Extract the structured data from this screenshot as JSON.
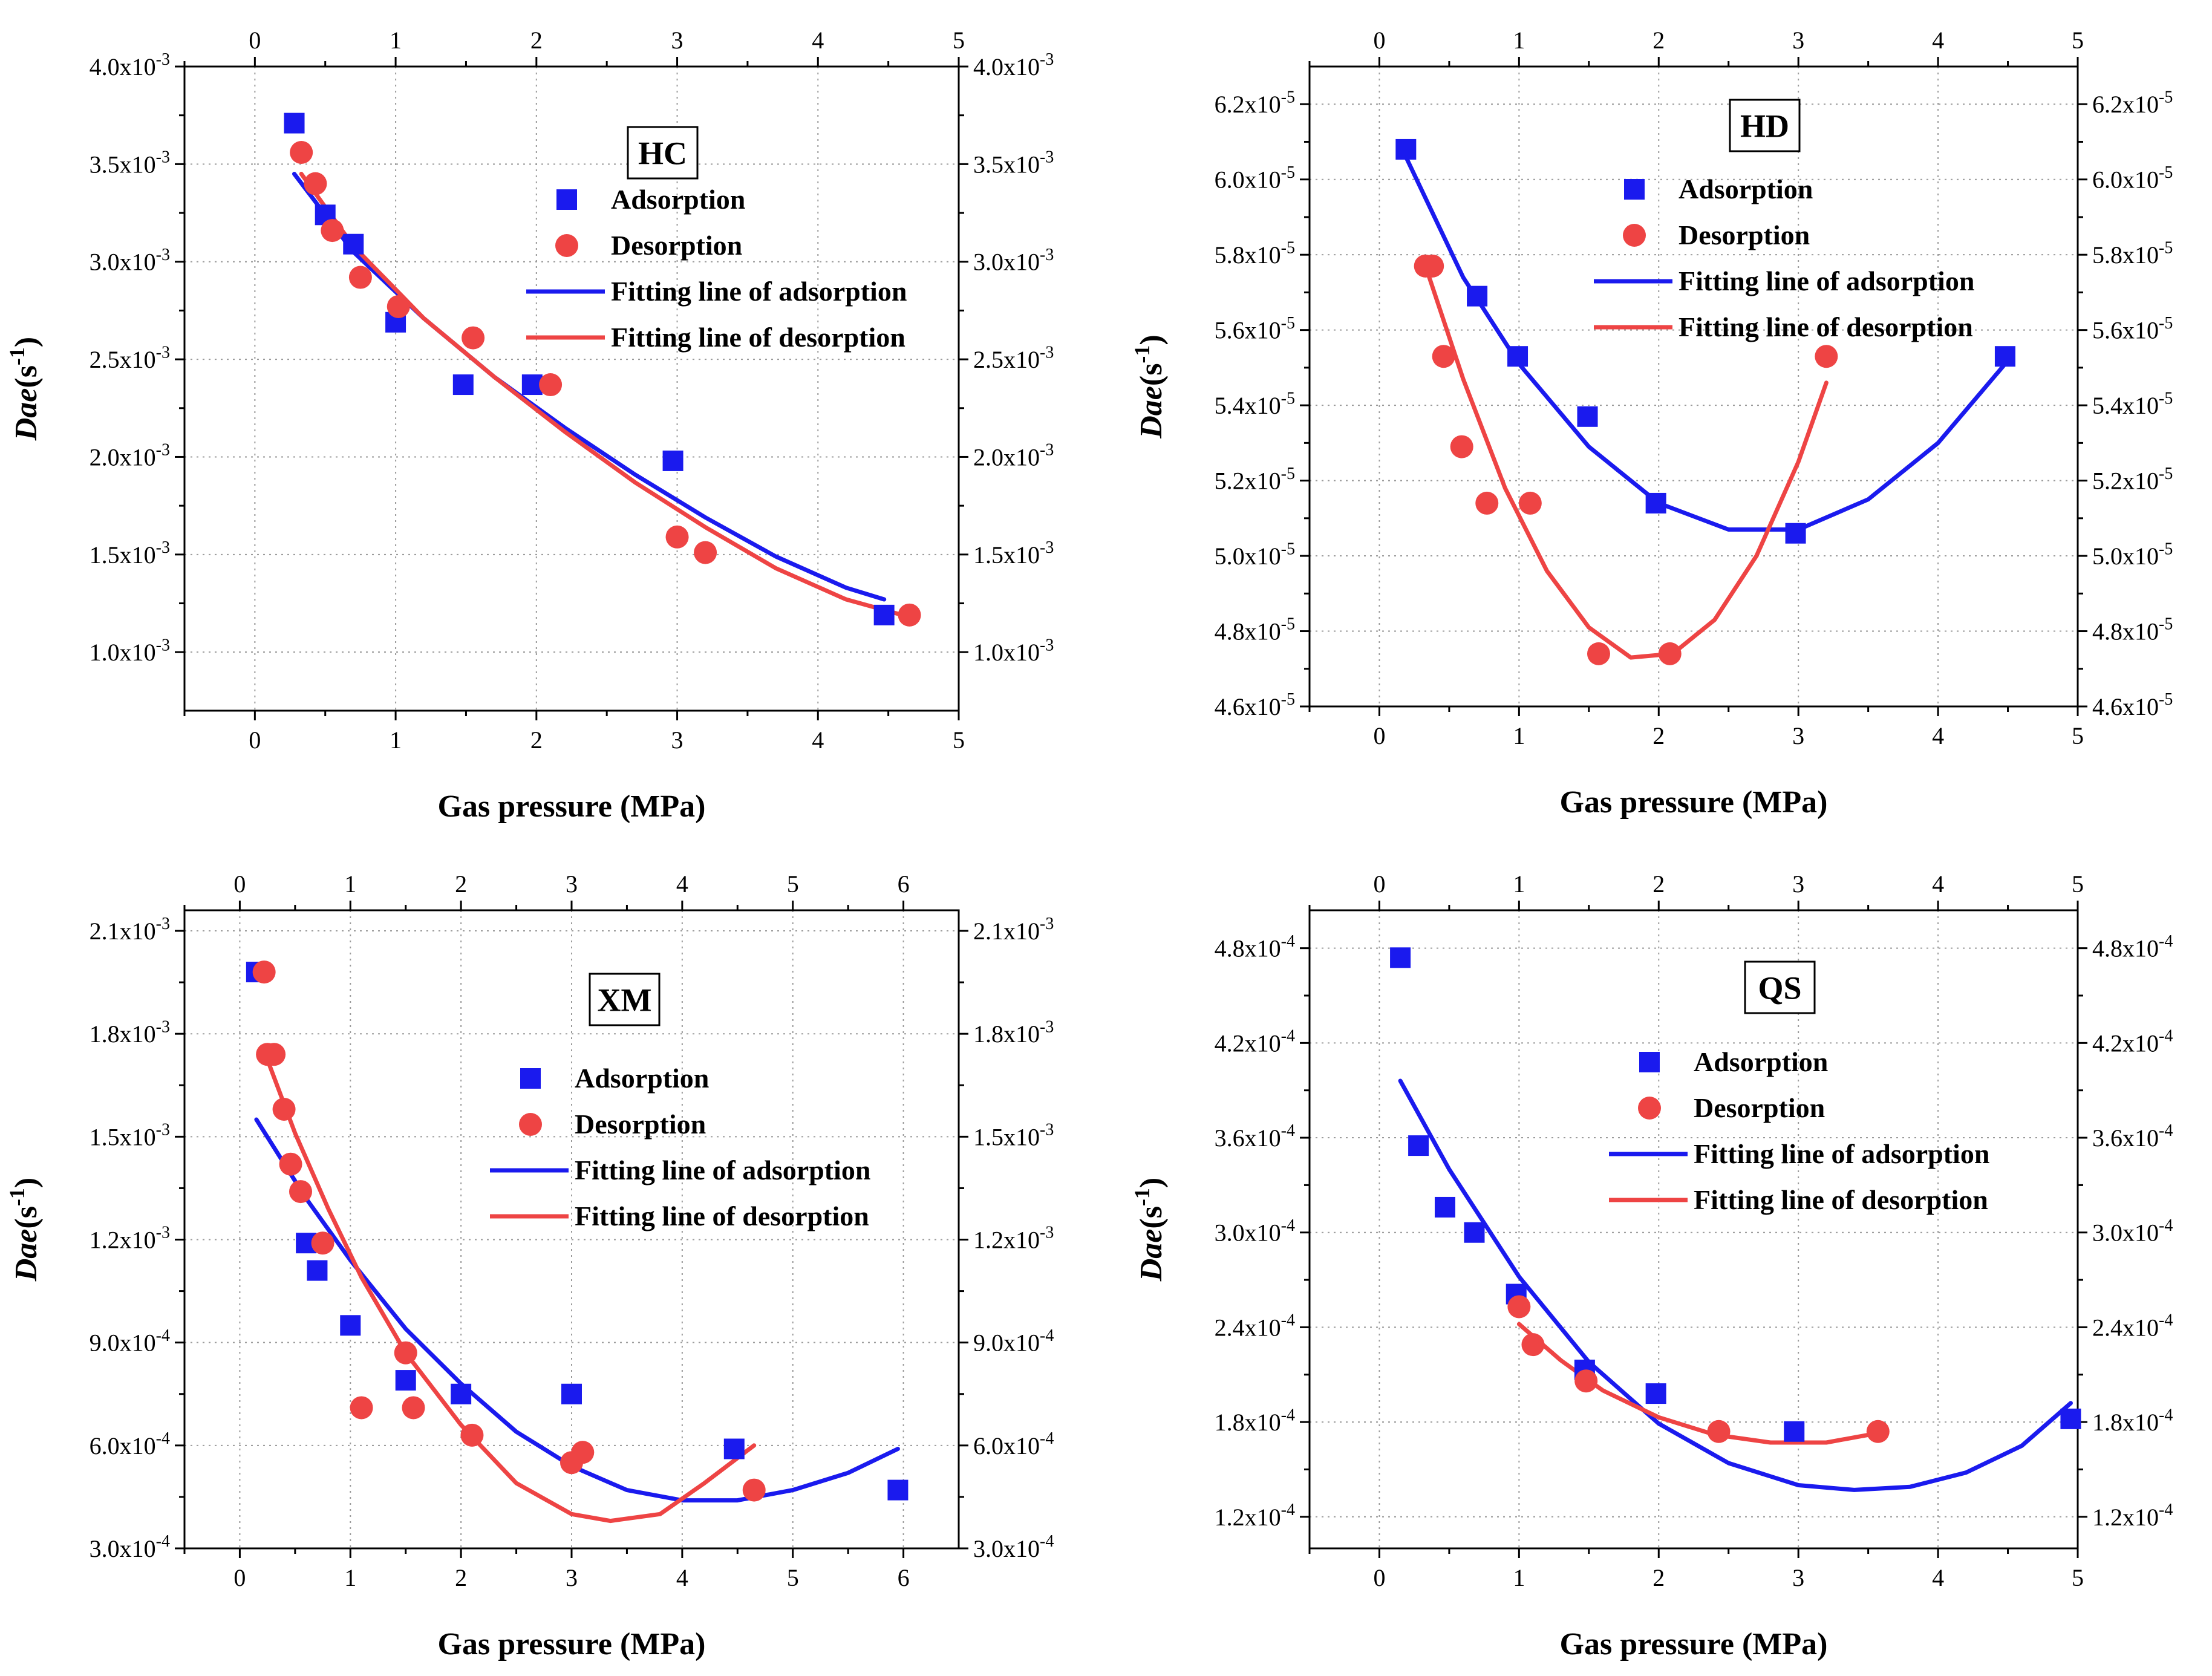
{
  "chart_data": [
    {
      "type": "scatter",
      "title": "HC",
      "xlabel": "Gas pressure (MPa)",
      "ylabel_main": "Dae",
      "ylabel_unit": "(s",
      "ylabel_exp": "-1",
      "xlim": [
        -0.5,
        5
      ],
      "ylim": [
        0.0007,
        0.004
      ],
      "xticks": [
        0,
        1,
        2,
        3,
        4,
        5
      ],
      "xtick_labels": [
        "0",
        "1",
        "2",
        "3",
        "4",
        "5"
      ],
      "yticks": [
        0.001,
        0.0015,
        0.002,
        0.0025,
        0.003,
        0.0035,
        0.004
      ],
      "ytick_mant": [
        "1.0x10",
        "1.5x10",
        "2.0x10",
        "2.5x10",
        "3.0x10",
        "3.5x10",
        "4.0x10"
      ],
      "ytick_exp": "-3",
      "legend_labels": [
        "Adsorption",
        "Desorption",
        "Fitting line of adsorption",
        "Fitting line of desorption"
      ],
      "adsorption": {
        "x": [
          0.28,
          0.5,
          0.7,
          1.0,
          1.48,
          1.97,
          2.97,
          4.47
        ],
        "y": [
          0.00371,
          0.00324,
          0.00309,
          0.00269,
          0.00237,
          0.00237,
          0.00198,
          0.00119
        ]
      },
      "desorption": {
        "x": [
          0.33,
          0.43,
          0.55,
          0.75,
          1.02,
          1.55,
          2.1,
          3.0,
          3.2,
          4.65
        ],
        "y": [
          0.00356,
          0.0034,
          0.00316,
          0.00292,
          0.00277,
          0.00261,
          0.00237,
          0.00159,
          0.00151,
          0.00119
        ]
      },
      "fit_adsorption": {
        "x": [
          0.28,
          0.7,
          1.2,
          1.7,
          2.2,
          2.7,
          3.2,
          3.7,
          4.2,
          4.47
        ],
        "y": [
          0.00345,
          0.00305,
          0.00271,
          0.00241,
          0.00215,
          0.00191,
          0.00169,
          0.00149,
          0.00133,
          0.00127
        ]
      },
      "fit_desorption": {
        "x": [
          0.33,
          0.7,
          1.2,
          1.7,
          2.2,
          2.7,
          3.2,
          3.7,
          4.2,
          4.65
        ],
        "y": [
          0.00345,
          0.00308,
          0.00271,
          0.00241,
          0.00213,
          0.00187,
          0.00164,
          0.00143,
          0.00127,
          0.00118
        ]
      }
    },
    {
      "type": "scatter",
      "title": "HD",
      "xlabel": "Gas pressure (MPa)",
      "ylabel_main": "Dae",
      "ylabel_unit": "(s",
      "ylabel_exp": "-1",
      "xlim": [
        -0.5,
        5
      ],
      "ylim": [
        4.6e-05,
        6.3e-05
      ],
      "xticks": [
        0,
        1,
        2,
        3,
        4,
        5
      ],
      "xtick_labels": [
        "0",
        "1",
        "2",
        "3",
        "4",
        "5"
      ],
      "yticks": [
        4.6e-05,
        4.8e-05,
        5e-05,
        5.2e-05,
        5.4e-05,
        5.6e-05,
        5.8e-05,
        6e-05,
        6.2e-05
      ],
      "ytick_mant": [
        "4.6x10",
        "4.8x10",
        "5.0x10",
        "5.2x10",
        "5.4x10",
        "5.6x10",
        "5.8x10",
        "6.0x10",
        "6.2x10"
      ],
      "ytick_exp": "-5",
      "legend_labels": [
        "Adsorption",
        "Desorption",
        "Fitting line of adsorption",
        "Fitting line of desorption"
      ],
      "adsorption": {
        "x": [
          0.19,
          0.7,
          0.99,
          1.49,
          1.98,
          2.98,
          4.48
        ],
        "y": [
          6.08e-05,
          5.69e-05,
          5.53e-05,
          5.37e-05,
          5.14e-05,
          5.06e-05,
          5.53e-05
        ]
      },
      "desorption": {
        "x": [
          0.33,
          0.38,
          0.46,
          0.59,
          0.77,
          1.08,
          1.57,
          2.08,
          3.2
        ],
        "y": [
          5.77e-05,
          5.77e-05,
          5.53e-05,
          5.29e-05,
          5.14e-05,
          5.14e-05,
          4.74e-05,
          4.74e-05,
          5.53e-05
        ]
      },
      "fit_adsorption": {
        "x": [
          0.19,
          0.6,
          1.0,
          1.5,
          2.0,
          2.5,
          3.0,
          3.5,
          4.0,
          4.48
        ],
        "y": [
          6.06e-05,
          5.74e-05,
          5.51e-05,
          5.29e-05,
          5.14e-05,
          5.07e-05,
          5.07e-05,
          5.15e-05,
          5.3e-05,
          5.51e-05
        ]
      },
      "fit_desorption": {
        "x": [
          0.33,
          0.6,
          0.9,
          1.2,
          1.5,
          1.8,
          2.1,
          2.4,
          2.7,
          3.0,
          3.2
        ],
        "y": [
          5.77e-05,
          5.47e-05,
          5.18e-05,
          4.96e-05,
          4.81e-05,
          4.73e-05,
          4.74e-05,
          4.83e-05,
          5e-05,
          5.25e-05,
          5.46e-05
        ]
      }
    },
    {
      "type": "scatter",
      "title": "XM",
      "xlabel": "Gas pressure (MPa)",
      "ylabel_main": "Dae",
      "ylabel_unit": "(s",
      "ylabel_exp": "-1",
      "xlim": [
        -0.5,
        6.5
      ],
      "ylim": [
        0.0003,
        0.00216
      ],
      "xticks": [
        0,
        1,
        2,
        3,
        4,
        5,
        6
      ],
      "xtick_labels": [
        "0",
        "1",
        "2",
        "3",
        "4",
        "5",
        "6"
      ],
      "yticks": [
        0.0003,
        0.0006,
        0.0009,
        0.0012,
        0.0015,
        0.0018,
        0.0021
      ],
      "ytick_mant": [
        "3.0x10",
        "6.0x10",
        "9.0x10",
        "1.2x10",
        "1.5x10",
        "1.8x10",
        "2.1x10"
      ],
      "ytick_exp_list": [
        "-4",
        "-4",
        "-4",
        "-3",
        "-3",
        "-3",
        "-3"
      ],
      "legend_labels": [
        "Adsorption",
        "Desorption",
        "Fitting line of adsorption",
        "Fitting line of desorption"
      ],
      "adsorption": {
        "x": [
          0.15,
          0.6,
          0.7,
          1.0,
          1.5,
          2.0,
          3.0,
          4.47,
          5.95
        ],
        "y": [
          0.00198,
          0.00119,
          0.00111,
          0.00095,
          0.00079,
          0.00075,
          0.00075,
          0.00059,
          0.00047
        ]
      },
      "desorption": {
        "x": [
          0.22,
          0.25,
          0.31,
          0.4,
          0.46,
          0.55,
          0.75,
          1.1,
          1.5,
          1.57,
          2.1,
          3.0,
          3.1,
          4.65
        ],
        "y": [
          0.00198,
          0.00174,
          0.00174,
          0.00158,
          0.00142,
          0.00134,
          0.00119,
          0.00071,
          0.00087,
          0.00071,
          0.00063,
          0.00055,
          0.00058,
          0.00047
        ]
      },
      "fit_adsorption": {
        "x": [
          0.15,
          0.6,
          1.0,
          1.5,
          2.0,
          2.5,
          3.0,
          3.5,
          4.0,
          4.5,
          5.0,
          5.5,
          5.95
        ],
        "y": [
          0.00155,
          0.00132,
          0.00114,
          0.00094,
          0.00078,
          0.00064,
          0.00054,
          0.00047,
          0.00044,
          0.00044,
          0.00047,
          0.00052,
          0.00059
        ]
      },
      "fit_desorption": {
        "x": [
          0.22,
          0.5,
          0.8,
          1.1,
          1.5,
          2.0,
          2.5,
          3.0,
          3.35,
          3.8,
          4.2,
          4.65
        ],
        "y": [
          0.00175,
          0.00151,
          0.00129,
          0.00109,
          0.00087,
          0.00066,
          0.00049,
          0.0004,
          0.00038,
          0.0004,
          0.00049,
          0.0006
        ]
      }
    },
    {
      "type": "scatter",
      "title": "QS",
      "xlabel": "Gas pressure (MPa)",
      "ylabel_main": "Dae",
      "ylabel_unit": "(s",
      "ylabel_exp": "-1",
      "xlim": [
        -0.5,
        5
      ],
      "ylim": [
        0.0001,
        0.000504
      ],
      "xticks": [
        0,
        1,
        2,
        3,
        4,
        5
      ],
      "xtick_labels": [
        "0",
        "1",
        "2",
        "3",
        "4",
        "5"
      ],
      "yticks": [
        0.00012,
        0.00018,
        0.00024,
        0.0003,
        0.00036,
        0.00042,
        0.00048
      ],
      "ytick_mant": [
        "1.2x10",
        "1.8x10",
        "2.4x10",
        "3.0x10",
        "3.6x10",
        "4.2x10",
        "4.8x10"
      ],
      "ytick_exp": "-4",
      "legend_labels": [
        "Adsorption",
        "Desorption",
        "Fitting line of adsorption",
        "Fitting line of desorption"
      ],
      "adsorption": {
        "x": [
          0.15,
          0.28,
          0.47,
          0.68,
          0.98,
          1.47,
          1.98,
          2.97,
          4.95
        ],
        "y": [
          0.000474,
          0.000355,
          0.000316,
          0.0003,
          0.000261,
          0.000213,
          0.000198,
          0.000174,
          0.000182
        ]
      },
      "desorption": {
        "x": [
          1.0,
          1.1,
          1.48,
          2.43,
          3.57
        ],
        "y": [
          0.000253,
          0.000229,
          0.000206,
          0.000174,
          0.000174
        ]
      },
      "fit_adsorption": {
        "x": [
          0.15,
          0.5,
          1.0,
          1.5,
          2.0,
          2.5,
          3.0,
          3.4,
          3.8,
          4.2,
          4.6,
          4.95
        ],
        "y": [
          0.000396,
          0.00034,
          0.000272,
          0.000218,
          0.000179,
          0.000154,
          0.00014,
          0.000137,
          0.000139,
          0.000148,
          0.000165,
          0.000192
        ]
      },
      "fit_desorption": {
        "x": [
          1.0,
          1.3,
          1.6,
          2.0,
          2.4,
          2.8,
          3.2,
          3.57
        ],
        "y": [
          0.000242,
          0.000219,
          0.0002,
          0.000183,
          0.000172,
          0.000167,
          0.000167,
          0.000173
        ]
      }
    }
  ],
  "colors": {
    "adsorption": "#1a1aee",
    "desorption": "#ee4444"
  }
}
